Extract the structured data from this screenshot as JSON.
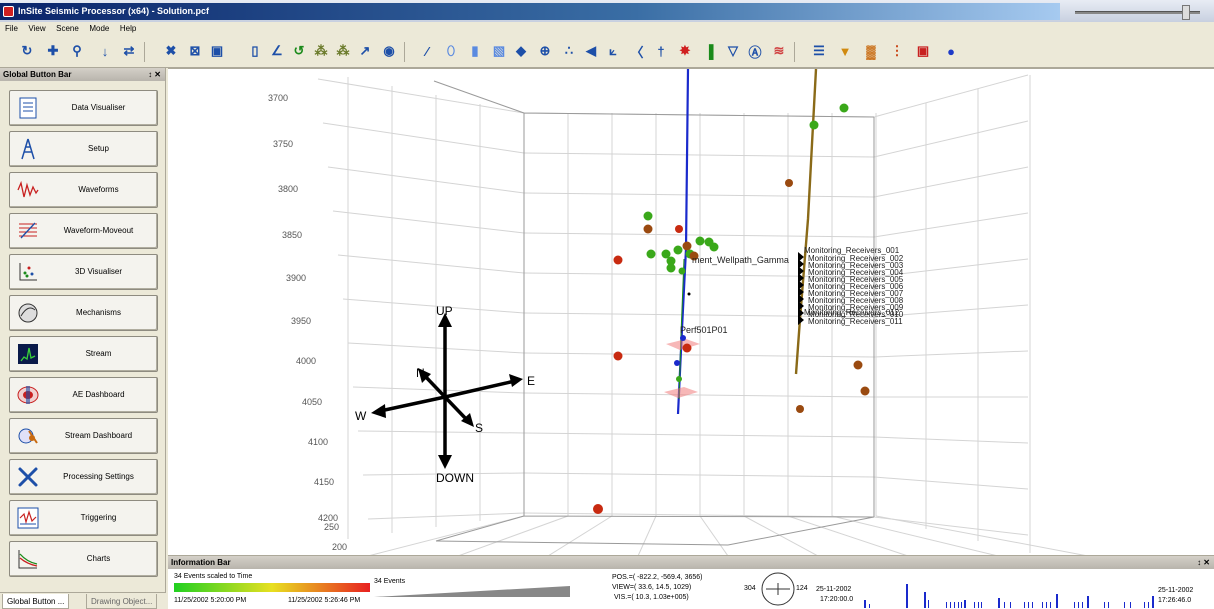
{
  "window": {
    "title": "InSite Seismic Processor (x64) - Solution.pcf"
  },
  "menu": [
    "File",
    "View",
    "Scene",
    "Mode",
    "Help"
  ],
  "toolbar": {
    "icons": [
      "rotate-icon",
      "move-icon",
      "zoom-icon",
      "down-arrow-icon",
      "refresh-icon",
      "tools-icon",
      "frame-icon",
      "camera-icon",
      "layers-icon",
      "angle-icon",
      "undo-icon",
      "graph-a-icon",
      "graph-b-icon",
      "graph-c-icon",
      "target-icon",
      "pen-icon",
      "ellipse-icon",
      "cylinder-icon",
      "cube-icon",
      "plane-icon",
      "crosshair-icon",
      "scatter-icon",
      "split-icon",
      "axis-icon",
      "bracket-icon",
      "cross-icon",
      "star-icon",
      "histogram-icon",
      "filter-icon",
      "font-icon",
      "wave-icon",
      "list-icon",
      "label-icon",
      "grid-icon",
      "dots-icon",
      "square-icon",
      "sphere-icon"
    ]
  },
  "global_button_bar": {
    "title": "Global Button Bar",
    "controls": "↕ ✕",
    "buttons": [
      {
        "label": "Data Visualiser",
        "icon": "document-icon"
      },
      {
        "label": "Setup",
        "icon": "rig-icon"
      },
      {
        "label": "Waveforms",
        "icon": "waveform-icon"
      },
      {
        "label": "Waveform-Moveout",
        "icon": "moveout-icon"
      },
      {
        "label": "3D Visualiser",
        "icon": "scatter3d-icon"
      },
      {
        "label": "Mechanisms",
        "icon": "mechanism-icon"
      },
      {
        "label": "Stream",
        "icon": "stream-icon"
      },
      {
        "label": "AE Dashboard",
        "icon": "dashboard-icon"
      },
      {
        "label": "Stream Dashboard",
        "icon": "stream-dashboard-icon"
      },
      {
        "label": "Processing Settings",
        "icon": "wrench-icon"
      },
      {
        "label": "Triggering",
        "icon": "trigger-icon"
      },
      {
        "label": "Charts",
        "icon": "chart-icon"
      }
    ]
  },
  "bottom_tabs": [
    "Global Button ...",
    "Drawing Object..."
  ],
  "scene": {
    "depth_ticks": [
      "3700",
      "3750",
      "3800",
      "3850",
      "3900",
      "3950",
      "4000",
      "4050",
      "4100",
      "4150",
      "4200"
    ],
    "bottom_ticks": [
      "250",
      "200"
    ],
    "compass": {
      "up": "UP",
      "down": "DOWN",
      "n": "N",
      "e": "E",
      "s": "S",
      "w": "W"
    },
    "labels": {
      "wellpath": "ment_Wellpath_Gamma",
      "perf": "Perf501P01",
      "receivers": [
        "Monitoring_Receivers_001",
        "Monitoring_Receivers_002",
        "Monitoring_Receivers_003",
        "Monitoring_Receivers_004",
        "Monitoring_Receivers_005",
        "Monitoring_Receivers_006",
        "Monitoring_Receivers_007",
        "Monitoring_Receivers_008",
        "Monitoring_Receivers_009",
        "Monitoring_Receivers_010",
        "Monitoring_Receivers_011",
        "Monitoring_Receivers_012"
      ]
    },
    "colors": {
      "well_blue": "#1a2acc",
      "well_brown": "#8a6a18",
      "event_green": "#3aa81a",
      "event_red": "#c82a10",
      "event_brown": "#9a4a10"
    }
  },
  "info_bar": {
    "title": "Information Bar",
    "controls": "↕ ✕",
    "scale_label": "34 Events scaled to Time",
    "scale_start": "11/25/2002 5:20:00 PM",
    "scale_end": "11/25/2002 5:26:46 PM",
    "events_label": "34 Events",
    "pos": "POS.=( -822.2, -569.4, 3656)",
    "view": "VIEW=( 33.6, 14.5, 1029)",
    "vis": "VIS.=( 10.3, 1.03e+005)",
    "compass_left": "304",
    "compass_right": "124",
    "time_start_date": "25-11-2002",
    "time_start": "17:20:00.0",
    "time_end_date": "25-11-2002",
    "time_end": "17:26:46.0"
  }
}
